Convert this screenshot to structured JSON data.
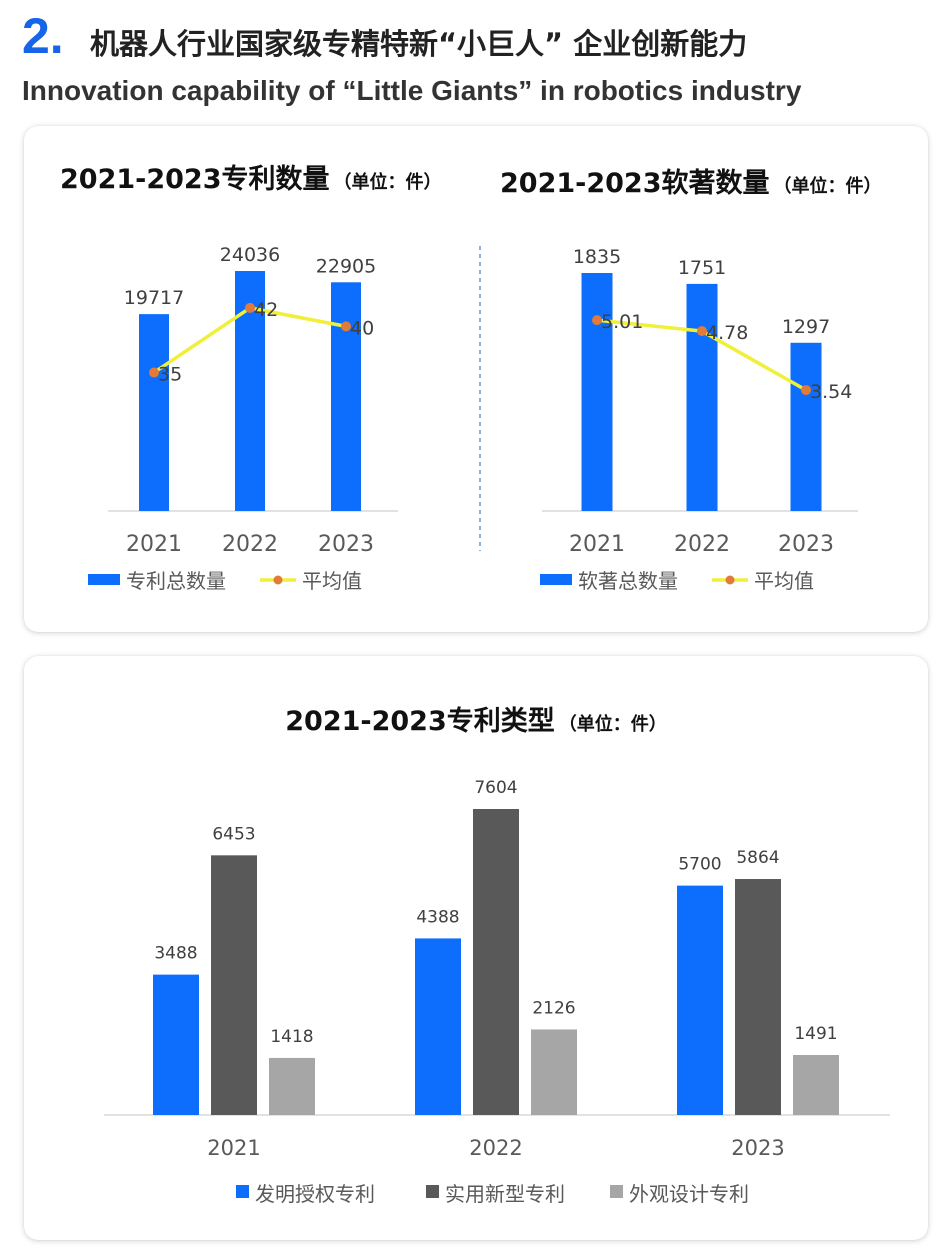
{
  "header": {
    "number": "2.",
    "title_cn": "机器人行业国家级专精特新“小巨人” 企业创新能力",
    "title_en": "Innovation capability of “Little Giants” in robotics industry"
  },
  "colors": {
    "accent": "#1565e6",
    "bar_blue": "#0d6efd",
    "bar_darkgray": "#595959",
    "bar_lightgray": "#a6a6a6",
    "line_yellow": "#f0ef3a",
    "marker_orange": "#e07b39"
  },
  "chart_data": [
    {
      "type": "bar",
      "title": "2021-2023专利数量",
      "unit": "（单位：件）",
      "categories": [
        "2021",
        "2022",
        "2023"
      ],
      "series": [
        {
          "name": "专利总数量",
          "type": "bar",
          "values": [
            19717,
            24036,
            22905
          ],
          "labels": [
            "19717",
            "24036",
            "22905"
          ]
        },
        {
          "name": "平均值",
          "type": "line",
          "values": [
            35,
            42,
            40
          ],
          "labels": [
            "35",
            "42",
            "40"
          ]
        }
      ],
      "legend": [
        "专利总数量",
        "平均值"
      ],
      "legend_position": "bottom",
      "grid": false
    },
    {
      "type": "bar",
      "title": "2021-2023软著数量",
      "unit": "（单位：件）",
      "categories": [
        "2021",
        "2022",
        "2023"
      ],
      "series": [
        {
          "name": "软著总数量",
          "type": "bar",
          "values": [
            1835,
            1751,
            1297
          ],
          "labels": [
            "1835",
            "1751",
            "1297"
          ]
        },
        {
          "name": "平均值",
          "type": "line",
          "values": [
            5.01,
            4.78,
            3.54
          ],
          "labels": [
            "5.01",
            "4.78",
            "3.54"
          ]
        }
      ],
      "legend": [
        "软著总数量",
        "平均值"
      ],
      "legend_position": "bottom",
      "grid": false
    },
    {
      "type": "bar",
      "title": "2021-2023专利类型",
      "unit": "（单位：件）",
      "categories": [
        "2021",
        "2022",
        "2023"
      ],
      "series": [
        {
          "name": "发明授权专利",
          "values": [
            3488,
            4388,
            5700
          ],
          "labels": [
            "3488",
            "4388",
            "5700"
          ]
        },
        {
          "name": "实用新型专利",
          "values": [
            6453,
            7604,
            5864
          ],
          "labels": [
            "6453",
            "7604",
            "5864"
          ]
        },
        {
          "name": "外观设计专利",
          "values": [
            1418,
            2126,
            1491
          ],
          "labels": [
            "1418",
            "2126",
            "1491"
          ]
        }
      ],
      "legend": [
        "发明授权专利",
        "实用新型专利",
        "外观设计专利"
      ],
      "legend_position": "bottom",
      "grid": false
    }
  ]
}
